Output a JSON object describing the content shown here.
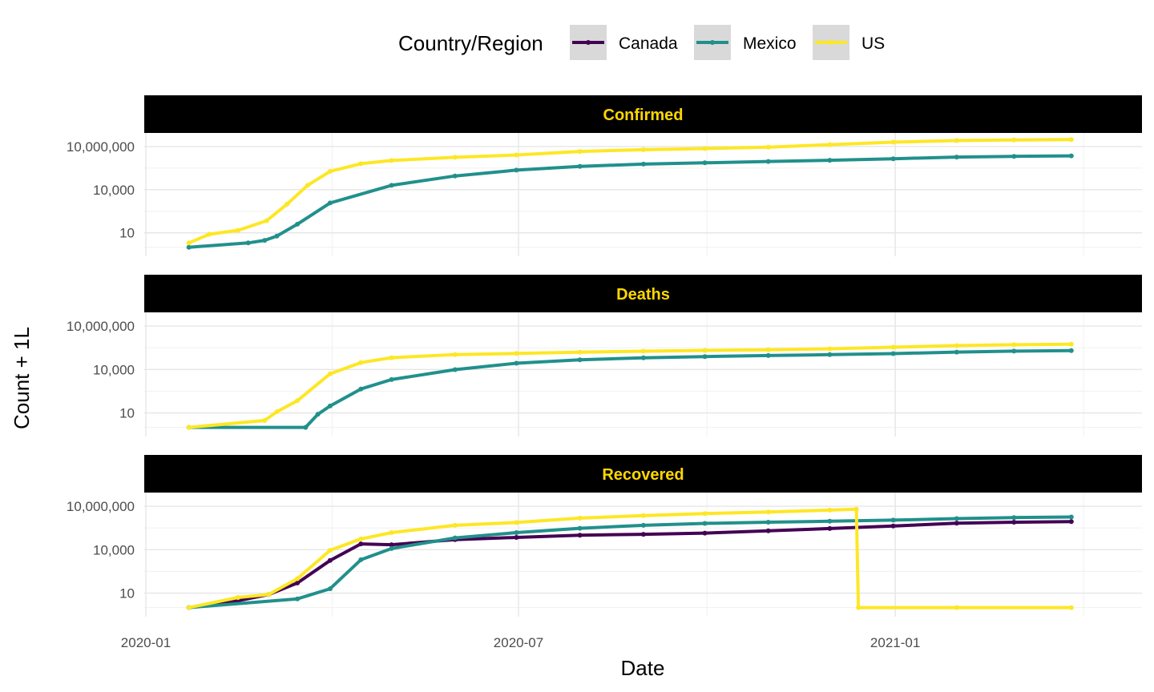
{
  "chart_data": {
    "type": "line",
    "xlabel": "Date",
    "ylabel": "Count + 1L",
    "x_ticks": [
      "2020-01",
      "2020-07",
      "2021-01"
    ],
    "y_scale": "log10",
    "y_ticks": [
      {
        "value": 10,
        "label": "10"
      },
      {
        "value": 10000,
        "label": "10,000"
      },
      {
        "value": 10000000,
        "label": "10,000,000"
      }
    ],
    "legend": {
      "title": "Country/Region",
      "position": "top",
      "entries": [
        {
          "name": "Canada",
          "color": "#440154"
        },
        {
          "name": "Mexico",
          "color": "#21908C"
        },
        {
          "name": "US",
          "color": "#FDE725"
        }
      ]
    },
    "facets": [
      {
        "label": "Confirmed",
        "series": [
          {
            "name": "Mexico",
            "color": "#21908C",
            "points": [
              [
                "2020-01-22",
                1
              ],
              [
                "2020-02-20",
                2
              ],
              [
                "2020-02-28",
                3
              ],
              [
                "2020-03-05",
                6
              ],
              [
                "2020-03-15",
                40
              ],
              [
                "2020-03-31",
                1200
              ],
              [
                "2020-04-30",
                20000
              ],
              [
                "2020-05-31",
                90000
              ],
              [
                "2020-06-30",
                230000
              ],
              [
                "2020-07-31",
                420000
              ],
              [
                "2020-08-31",
                600000
              ],
              [
                "2020-09-30",
                740000
              ],
              [
                "2020-10-31",
                920000
              ],
              [
                "2020-11-30",
                1110000
              ],
              [
                "2020-12-31",
                1420000
              ],
              [
                "2021-01-31",
                1860000
              ],
              [
                "2021-02-28",
                2080000
              ],
              [
                "2021-03-28",
                2230000
              ]
            ]
          },
          {
            "name": "US",
            "color": "#FDE725",
            "points": [
              [
                "2020-01-22",
                2
              ],
              [
                "2020-02-01",
                8
              ],
              [
                "2020-02-15",
                15
              ],
              [
                "2020-02-29",
                70
              ],
              [
                "2020-03-10",
                1000
              ],
              [
                "2020-03-20",
                20000
              ],
              [
                "2020-03-31",
                190000
              ],
              [
                "2020-04-15",
                640000
              ],
              [
                "2020-04-30",
                1070000
              ],
              [
                "2020-05-31",
                1790000
              ],
              [
                "2020-06-30",
                2600000
              ],
              [
                "2020-07-31",
                4560000
              ],
              [
                "2020-08-31",
                6000000
              ],
              [
                "2020-09-30",
                7200000
              ],
              [
                "2020-10-31",
                9100000
              ],
              [
                "2020-11-30",
                13500000
              ],
              [
                "2020-12-31",
                20000000
              ],
              [
                "2021-01-31",
                26000000
              ],
              [
                "2021-02-28",
                28500000
              ],
              [
                "2021-03-28",
                30200000
              ]
            ]
          }
        ]
      },
      {
        "label": "Deaths",
        "series": [
          {
            "name": "Mexico",
            "color": "#21908C",
            "points": [
              [
                "2020-01-22",
                1
              ],
              [
                "2020-03-19",
                1
              ],
              [
                "2020-03-25",
                8
              ],
              [
                "2020-03-31",
                30
              ],
              [
                "2020-04-15",
                450
              ],
              [
                "2020-04-30",
                2000
              ],
              [
                "2020-05-31",
                9800
              ],
              [
                "2020-06-30",
                27000
              ],
              [
                "2020-07-31",
                46000
              ],
              [
                "2020-08-31",
                64000
              ],
              [
                "2020-09-30",
                78000
              ],
              [
                "2020-10-31",
                92000
              ],
              [
                "2020-11-30",
                106000
              ],
              [
                "2020-12-31",
                125000
              ],
              [
                "2021-01-31",
                158000
              ],
              [
                "2021-02-28",
                185000
              ],
              [
                "2021-03-28",
                200000
              ]
            ]
          },
          {
            "name": "US",
            "color": "#FDE725",
            "points": [
              [
                "2020-01-22",
                1
              ],
              [
                "2020-02-28",
                3
              ],
              [
                "2020-03-05",
                12
              ],
              [
                "2020-03-15",
                70
              ],
              [
                "2020-03-31",
                5000
              ],
              [
                "2020-04-15",
                30000
              ],
              [
                "2020-04-30",
                65000
              ],
              [
                "2020-05-31",
                105000
              ],
              [
                "2020-06-30",
                127000
              ],
              [
                "2020-07-31",
                155000
              ],
              [
                "2020-08-31",
                183000
              ],
              [
                "2020-09-30",
                206000
              ],
              [
                "2020-10-31",
                230000
              ],
              [
                "2020-11-30",
                268000
              ],
              [
                "2020-12-31",
                345000
              ],
              [
                "2021-01-31",
                442000
              ],
              [
                "2021-02-28",
                514000
              ],
              [
                "2021-03-28",
                550000
              ]
            ]
          }
        ]
      },
      {
        "label": "Recovered",
        "series": [
          {
            "name": "Canada",
            "color": "#440154",
            "points": [
              [
                "2020-01-22",
                1
              ],
              [
                "2020-02-15",
                3
              ],
              [
                "2020-03-01",
                8
              ],
              [
                "2020-03-15",
                50
              ],
              [
                "2020-03-31",
                1800
              ],
              [
                "2020-04-15",
                25000
              ],
              [
                "2020-04-30",
                22000
              ],
              [
                "2020-05-31",
                50000
              ],
              [
                "2020-06-30",
                70000
              ],
              [
                "2020-07-31",
                100000
              ],
              [
                "2020-08-31",
                115000
              ],
              [
                "2020-09-30",
                140000
              ],
              [
                "2020-10-31",
                200000
              ],
              [
                "2020-11-30",
                290000
              ],
              [
                "2020-12-31",
                430000
              ],
              [
                "2021-01-31",
                680000
              ],
              [
                "2021-02-28",
                790000
              ],
              [
                "2021-03-28",
                860000
              ]
            ]
          },
          {
            "name": "Mexico",
            "color": "#21908C",
            "points": [
              [
                "2020-01-22",
                1
              ],
              [
                "2020-03-15",
                4
              ],
              [
                "2020-03-31",
                20
              ],
              [
                "2020-04-15",
                2000
              ],
              [
                "2020-04-30",
                12000
              ],
              [
                "2020-05-31",
                65000
              ],
              [
                "2020-06-30",
                150000
              ],
              [
                "2020-07-31",
                300000
              ],
              [
                "2020-08-31",
                480000
              ],
              [
                "2020-09-30",
                650000
              ],
              [
                "2020-10-31",
                790000
              ],
              [
                "2020-11-30",
                920000
              ],
              [
                "2020-12-31",
                1100000
              ],
              [
                "2021-01-31",
                1400000
              ],
              [
                "2021-02-28",
                1660000
              ],
              [
                "2021-03-28",
                1800000
              ]
            ]
          },
          {
            "name": "US",
            "color": "#FDE725",
            "points": [
              [
                "2020-01-22",
                1
              ],
              [
                "2020-02-15",
                5
              ],
              [
                "2020-03-01",
                8
              ],
              [
                "2020-03-15",
                100
              ],
              [
                "2020-03-31",
                9000
              ],
              [
                "2020-04-15",
                55000
              ],
              [
                "2020-04-30",
                150000
              ],
              [
                "2020-05-31",
                480000
              ],
              [
                "2020-06-30",
                750000
              ],
              [
                "2020-07-31",
                1500000
              ],
              [
                "2020-08-31",
                2250000
              ],
              [
                "2020-09-30",
                3100000
              ],
              [
                "2020-10-31",
                4000000
              ],
              [
                "2020-11-30",
                5400000
              ],
              [
                "2020-12-13",
                6300000
              ],
              [
                "2020-12-14",
                1
              ],
              [
                "2021-01-31",
                1
              ],
              [
                "2021-03-28",
                1
              ]
            ]
          }
        ]
      }
    ]
  }
}
